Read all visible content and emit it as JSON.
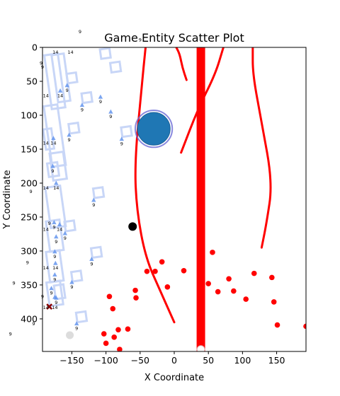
{
  "chart_data": {
    "type": "scatter",
    "title": "Game Entity Scatter Plot",
    "xlabel": "X Coordinate",
    "ylabel": "Y Coordinate",
    "xlim": [
      -193,
      193
    ],
    "ylim": [
      448,
      0
    ],
    "y_inverted": true,
    "grid": false,
    "legend": "none",
    "xticks": [
      -150,
      -100,
      -50,
      0,
      50,
      100,
      150
    ],
    "yticks": [
      0,
      50,
      100,
      150,
      200,
      250,
      300,
      350,
      400
    ],
    "colors": {
      "red": "#ff0000",
      "blue": "#1f77b4",
      "blue_ring": "#6b6bd6",
      "marker_blue": "#6495ed",
      "square_outline": "#c8d6f7",
      "gray": "#d3d3d3",
      "dark_red": "#8b0000",
      "black": "#000000"
    },
    "red_points": [
      [
        -95,
        367
      ],
      [
        -90,
        385
      ],
      [
        -103,
        422
      ],
      [
        -100,
        436
      ],
      [
        -88,
        427
      ],
      [
        -82,
        416
      ],
      [
        -80,
        445
      ],
      [
        -68,
        415
      ],
      [
        -57,
        358
      ],
      [
        -56,
        369
      ],
      [
        -40,
        330
      ],
      [
        -28,
        330
      ],
      [
        -18,
        316
      ],
      [
        -10,
        353
      ],
      [
        14,
        329
      ],
      [
        50,
        348
      ],
      [
        56,
        302
      ],
      [
        64,
        360
      ],
      [
        80,
        341
      ],
      [
        87,
        359
      ],
      [
        105,
        371
      ],
      [
        117,
        333
      ],
      [
        143,
        339
      ],
      [
        146,
        375
      ],
      [
        151,
        409
      ],
      [
        193,
        411
      ]
    ],
    "blue_triangles": [
      [
        -108,
        73
      ],
      [
        -93,
        95
      ],
      [
        -157,
        56
      ],
      [
        -135,
        85
      ],
      [
        -167,
        64
      ],
      [
        -154,
        129
      ],
      [
        -77,
        135
      ],
      [
        -177,
        134
      ],
      [
        -178,
        175
      ],
      [
        -173,
        200
      ],
      [
        -118,
        225
      ],
      [
        -168,
        261
      ],
      [
        -176,
        258
      ],
      [
        -160,
        274
      ],
      [
        -173,
        279
      ],
      [
        -175,
        301
      ],
      [
        -121,
        312
      ],
      [
        -174,
        318
      ],
      [
        -175,
        335
      ],
      [
        -150,
        346
      ],
      [
        -180,
        355
      ],
      [
        -173,
        369
      ],
      [
        -143,
        407
      ],
      [
        -175,
        368
      ]
    ],
    "point_labels": [
      [
        -108,
        73,
        "9"
      ],
      [
        -93,
        95,
        "9"
      ],
      [
        -157,
        56,
        "9"
      ],
      [
        -135,
        85,
        "9"
      ],
      [
        -167,
        64,
        "14"
      ],
      [
        -188,
        64,
        "14"
      ],
      [
        -154,
        129,
        "9"
      ],
      [
        -77,
        135,
        "9"
      ],
      [
        -177,
        134,
        "14"
      ],
      [
        -188,
        134,
        "14"
      ],
      [
        -178,
        175,
        "9"
      ],
      [
        -173,
        200,
        "14"
      ],
      [
        -188,
        200,
        "14"
      ],
      [
        -118,
        225,
        "9"
      ],
      [
        -168,
        261,
        "14"
      ],
      [
        -188,
        261,
        "14"
      ],
      [
        -176,
        258,
        "9"
      ],
      [
        -160,
        274,
        "9"
      ],
      [
        -173,
        279,
        "9"
      ],
      [
        -175,
        301,
        "9"
      ],
      [
        -121,
        312,
        "9"
      ],
      [
        -174,
        318,
        "14"
      ],
      [
        -188,
        318,
        "14"
      ],
      [
        -175,
        335,
        "9"
      ],
      [
        -150,
        346,
        "9"
      ],
      [
        -180,
        355,
        "9"
      ],
      [
        -173,
        369,
        "9"
      ],
      [
        -175,
        376,
        "14"
      ],
      [
        -188,
        376,
        "14"
      ],
      [
        -143,
        407,
        "9"
      ],
      [
        -174,
        0,
        "14"
      ],
      [
        -152,
        0,
        "14"
      ],
      [
        -195,
        16,
        "9"
      ],
      [
        -193,
        22,
        "9"
      ],
      [
        -183,
        252,
        "9"
      ],
      [
        -215,
        310,
        "9"
      ],
      [
        -193,
        360,
        "9"
      ],
      [
        -206,
        400,
        "9"
      ],
      [
        -235,
        340,
        "9"
      ],
      [
        -240,
        415,
        "9"
      ],
      [
        -138,
        -30,
        "9"
      ],
      [
        -50,
        -18,
        "9"
      ],
      [
        -210,
        205,
        "9"
      ]
    ],
    "big_circle": {
      "x": -30,
      "y": 120,
      "r": 40
    },
    "black_point": {
      "x": -61,
      "y": 264
    },
    "x_marker": {
      "x": -183,
      "y": 382
    },
    "gray_point": {
      "x": -153,
      "y": 424
    },
    "white_point": {
      "x": 39,
      "y": 445
    },
    "vertical_wall": {
      "x": 39,
      "y0": 0,
      "y1": 448
    },
    "red_curves": [
      {
        "points": [
          [
            -42,
            0
          ],
          [
            -48,
            60
          ],
          [
            -58,
            170
          ],
          [
            -55,
            240
          ],
          [
            -42,
            310
          ],
          [
            -20,
            360
          ],
          [
            0,
            405
          ]
        ]
      },
      {
        "points": [
          [
            3,
            0
          ],
          [
            8,
            10
          ],
          [
            12,
            30
          ],
          [
            18,
            48
          ]
        ]
      },
      {
        "points": [
          [
            72,
            0
          ],
          [
            60,
            40
          ],
          [
            35,
            90
          ],
          [
            10,
            155
          ]
        ]
      },
      {
        "points": [
          [
            115,
            0
          ],
          [
            115,
            40
          ],
          [
            128,
            110
          ],
          [
            144,
            200
          ],
          [
            135,
            260
          ],
          [
            128,
            295
          ]
        ]
      }
    ]
  }
}
